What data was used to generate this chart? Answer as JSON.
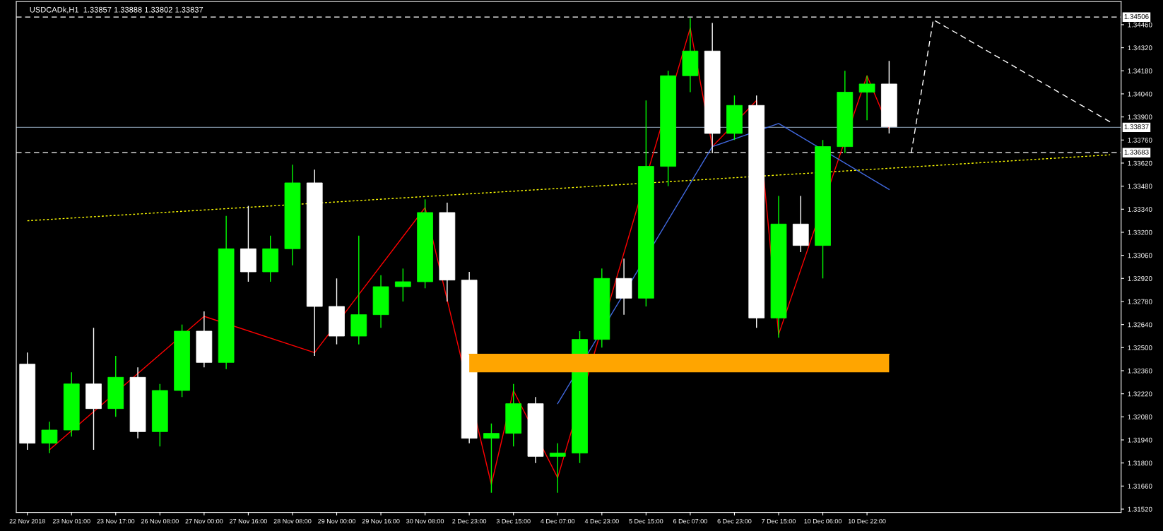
{
  "chart_data": {
    "type": "candlestick",
    "title": "USDCADk,H1  1.33857 1.33888 1.33802 1.33837",
    "categories": [
      "22 Nov 2018",
      null,
      "23 Nov 01:00",
      null,
      "23 Nov 17:00",
      null,
      "26 Nov 08:00",
      null,
      "27 Nov 00:00",
      null,
      "27 Nov 16:00",
      null,
      "28 Nov 08:00",
      null,
      "29 Nov 00:00",
      null,
      "29 Nov 16:00",
      null,
      "30 Nov 08:00",
      null,
      "2 Dec 23:00",
      null,
      "3 Dec 15:00",
      null,
      "4 Dec 07:00",
      null,
      "4 Dec 23:00",
      null,
      "5 Dec 15:00",
      null,
      "6 Dec 07:00",
      null,
      "6 Dec 23:00",
      null,
      "7 Dec 15:00",
      null,
      "10 Dec 06:00",
      null,
      "10 Dec 22:00",
      null,
      null,
      null,
      null,
      null,
      null,
      null,
      null,
      null,
      null,
      null
    ],
    "ohlc": [
      [
        1.324,
        1.3247,
        1.3188,
        1.3192
      ],
      [
        1.3192,
        1.3205,
        1.3186,
        1.32
      ],
      [
        1.32,
        1.3235,
        1.3196,
        1.3228
      ],
      [
        1.3228,
        1.3262,
        1.3188,
        1.3213
      ],
      [
        1.3213,
        1.3245,
        1.3208,
        1.3232
      ],
      [
        1.3232,
        1.3238,
        1.3195,
        1.3199
      ],
      [
        1.3199,
        1.3228,
        1.319,
        1.3224
      ],
      [
        1.3224,
        1.3264,
        1.322,
        1.326
      ],
      [
        1.326,
        1.3272,
        1.3238,
        1.3241
      ],
      [
        1.3241,
        1.333,
        1.3237,
        1.331
      ],
      [
        1.331,
        1.3336,
        1.329,
        1.3296
      ],
      [
        1.3296,
        1.3318,
        1.329,
        1.331
      ],
      [
        1.331,
        1.3361,
        1.33,
        1.335
      ],
      [
        1.335,
        1.3358,
        1.3245,
        1.3275
      ],
      [
        1.3275,
        1.3292,
        1.3252,
        1.3257
      ],
      [
        1.3257,
        1.3318,
        1.3252,
        1.327
      ],
      [
        1.327,
        1.3294,
        1.3262,
        1.3287
      ],
      [
        1.3287,
        1.3298,
        1.3278,
        1.329
      ],
      [
        1.329,
        1.334,
        1.3286,
        1.3332
      ],
      [
        1.3332,
        1.3338,
        1.3278,
        1.3291
      ],
      [
        1.3291,
        1.3296,
        1.3192,
        1.3195
      ],
      [
        1.3195,
        1.3204,
        1.3162,
        1.3198
      ],
      [
        1.3198,
        1.3228,
        1.319,
        1.3216
      ],
      [
        1.3216,
        1.322,
        1.318,
        1.3184
      ],
      [
        1.3184,
        1.3192,
        1.3162,
        1.3186
      ],
      [
        1.3186,
        1.326,
        1.318,
        1.3255
      ],
      [
        1.3255,
        1.3298,
        1.325,
        1.3292
      ],
      [
        1.3292,
        1.3304,
        1.327,
        1.328
      ],
      [
        1.328,
        1.34,
        1.3275,
        1.336
      ],
      [
        1.336,
        1.3418,
        1.3348,
        1.3415
      ],
      [
        1.3415,
        1.345,
        1.3405,
        1.343
      ],
      [
        1.343,
        1.3447,
        1.3368,
        1.338
      ],
      [
        1.338,
        1.3403,
        1.3376,
        1.3397
      ],
      [
        1.3397,
        1.3403,
        1.3262,
        1.3268
      ],
      [
        1.3268,
        1.3342,
        1.3256,
        1.3325
      ],
      [
        1.3325,
        1.3342,
        1.3308,
        1.3312
      ],
      [
        1.3312,
        1.3376,
        1.3292,
        1.3372
      ],
      [
        1.3372,
        1.3418,
        1.3368,
        1.3405
      ],
      [
        1.3405,
        1.3415,
        1.3388,
        1.341
      ],
      [
        1.341,
        1.3424,
        1.338,
        1.3384
      ],
      null,
      null,
      null,
      null,
      null,
      null,
      null,
      null,
      null,
      null
    ],
    "series": [
      {
        "type": "line",
        "color": "#ff0000",
        "line_style": "solid",
        "values": [
          null,
          1.3188,
          null,
          null,
          null,
          null,
          null,
          null,
          1.3269,
          null,
          null,
          null,
          null,
          1.3247,
          null,
          null,
          null,
          null,
          1.3335,
          null,
          null,
          1.3167,
          1.3224,
          null,
          1.3171,
          null,
          null,
          null,
          null,
          null,
          1.3444,
          1.3372,
          null,
          1.34,
          1.3258,
          null,
          null,
          null,
          1.3415,
          1.3383,
          null,
          null,
          null,
          null,
          null,
          null,
          null,
          null,
          null,
          null
        ]
      },
      {
        "type": "line",
        "color": "#ffff00",
        "line_style": "dotted",
        "values": [
          1.3327,
          null,
          null,
          null,
          null,
          null,
          null,
          null,
          null,
          null,
          null,
          null,
          null,
          null,
          null,
          null,
          null,
          null,
          null,
          null,
          null,
          null,
          null,
          null,
          null,
          null,
          null,
          null,
          null,
          null,
          null,
          null,
          null,
          null,
          null,
          null,
          null,
          null,
          null,
          null,
          null,
          null,
          null,
          null,
          null,
          null,
          null,
          null,
          null,
          1.3367
        ]
      },
      {
        "type": "line",
        "color": "#4169e1",
        "line_style": "solid",
        "values": [
          null,
          null,
          null,
          null,
          null,
          null,
          null,
          null,
          null,
          null,
          null,
          null,
          null,
          null,
          null,
          null,
          null,
          null,
          null,
          null,
          null,
          null,
          null,
          null,
          1.3216,
          null,
          null,
          null,
          null,
          null,
          null,
          1.3372,
          null,
          null,
          1.3386,
          null,
          null,
          null,
          null,
          1.3346,
          null,
          null,
          null,
          null,
          null,
          null,
          null,
          null,
          null,
          null
        ]
      },
      {
        "type": "line",
        "color": "#ffffff",
        "line_style": "dashed",
        "values": [
          null,
          null,
          null,
          null,
          null,
          null,
          null,
          null,
          null,
          null,
          null,
          null,
          null,
          null,
          null,
          null,
          null,
          null,
          null,
          null,
          null,
          null,
          null,
          null,
          null,
          null,
          null,
          null,
          null,
          null,
          null,
          null,
          null,
          null,
          null,
          null,
          null,
          null,
          null,
          null,
          1.3368,
          1.3449,
          null,
          null,
          null,
          null,
          null,
          null,
          null,
          1.3387
        ]
      },
      {
        "type": "line",
        "color": "#ffa500",
        "line_style": "solid",
        "values": [
          null,
          null,
          null,
          null,
          null,
          null,
          null,
          null,
          null,
          null,
          null,
          null,
          null,
          null,
          null,
          null,
          null,
          null,
          null,
          null,
          1.3246,
          1.3246,
          1.3246,
          1.3246,
          1.3246,
          1.3246,
          1.3246,
          1.3246,
          1.3246,
          1.3246,
          1.3246,
          1.3246,
          1.3246,
          1.3246,
          1.3246,
          1.3246,
          1.3246,
          1.3246,
          1.3246,
          1.3246,
          null,
          null,
          null,
          null,
          null,
          null,
          null,
          null,
          null,
          null
        ],
        "upper": [
          null,
          null,
          null,
          null,
          null,
          null,
          null,
          null,
          null,
          null,
          null,
          null,
          null,
          null,
          null,
          null,
          null,
          null,
          null,
          null,
          1.3246,
          1.3246,
          1.3246,
          1.3246,
          1.3246,
          1.3246,
          1.3246,
          1.3246,
          1.3246,
          1.3246,
          1.3246,
          1.3246,
          1.3246,
          1.3246,
          1.3246,
          1.3246,
          1.3246,
          1.3246,
          1.3246,
          1.3246,
          null,
          null,
          null,
          null,
          null,
          null,
          null,
          null,
          null,
          null
        ],
        "lower": [
          null,
          null,
          null,
          null,
          null,
          null,
          null,
          null,
          null,
          null,
          null,
          null,
          null,
          null,
          null,
          null,
          null,
          null,
          null,
          null,
          1.3235,
          1.3235,
          1.3235,
          1.3235,
          1.3235,
          1.3235,
          1.3235,
          1.3235,
          1.3235,
          1.3235,
          1.3235,
          1.3235,
          1.3235,
          1.3235,
          1.3235,
          1.3235,
          1.3235,
          1.3235,
          1.3235,
          1.3235,
          null,
          null,
          null,
          null,
          null,
          null,
          null,
          null,
          null,
          null
        ]
      }
    ],
    "ref_lines": [
      {
        "axis": "y",
        "value": 1.34506,
        "label": "1.34506",
        "color": "#ffffff",
        "line_style": "dashed"
      },
      {
        "axis": "y",
        "value": 1.33837,
        "label": "1.33837",
        "color": "#778899",
        "line_style": "solid"
      },
      {
        "axis": "y",
        "value": 1.33683,
        "label": "1.33683",
        "color": "#ffffff",
        "line_style": "dashed"
      }
    ],
    "ylim": [
      1.315,
      1.346
    ],
    "yticks": [
      {
        "value": 1.3152,
        "label": "1.31520"
      },
      {
        "value": 1.3166,
        "label": "1.31660"
      },
      {
        "value": 1.318,
        "label": "1.31800"
      },
      {
        "value": 1.3194,
        "label": "1.31940"
      },
      {
        "value": 1.3208,
        "label": "1.32080"
      },
      {
        "value": 1.3222,
        "label": "1.32220"
      },
      {
        "value": 1.3236,
        "label": "1.32360"
      },
      {
        "value": 1.325,
        "label": "1.32500"
      },
      {
        "value": 1.3264,
        "label": "1.32640"
      },
      {
        "value": 1.3278,
        "label": "1.32780"
      },
      {
        "value": 1.3292,
        "label": "1.32920"
      },
      {
        "value": 1.3306,
        "label": "1.33060"
      },
      {
        "value": 1.332,
        "label": "1.33200"
      },
      {
        "value": 1.3334,
        "label": "1.33340"
      },
      {
        "value": 1.3348,
        "label": "1.33480"
      },
      {
        "value": 1.3362,
        "label": "1.33620"
      },
      {
        "value": 1.3376,
        "label": "1.33760"
      },
      {
        "value": 1.339,
        "label": "1.33900"
      },
      {
        "value": 1.3404,
        "label": "1.34040"
      },
      {
        "value": 1.3418,
        "label": "1.34180"
      },
      {
        "value": 1.3432,
        "label": "1.34320"
      },
      {
        "value": 1.3446,
        "label": "1.34460"
      }
    ],
    "grid": false
  }
}
